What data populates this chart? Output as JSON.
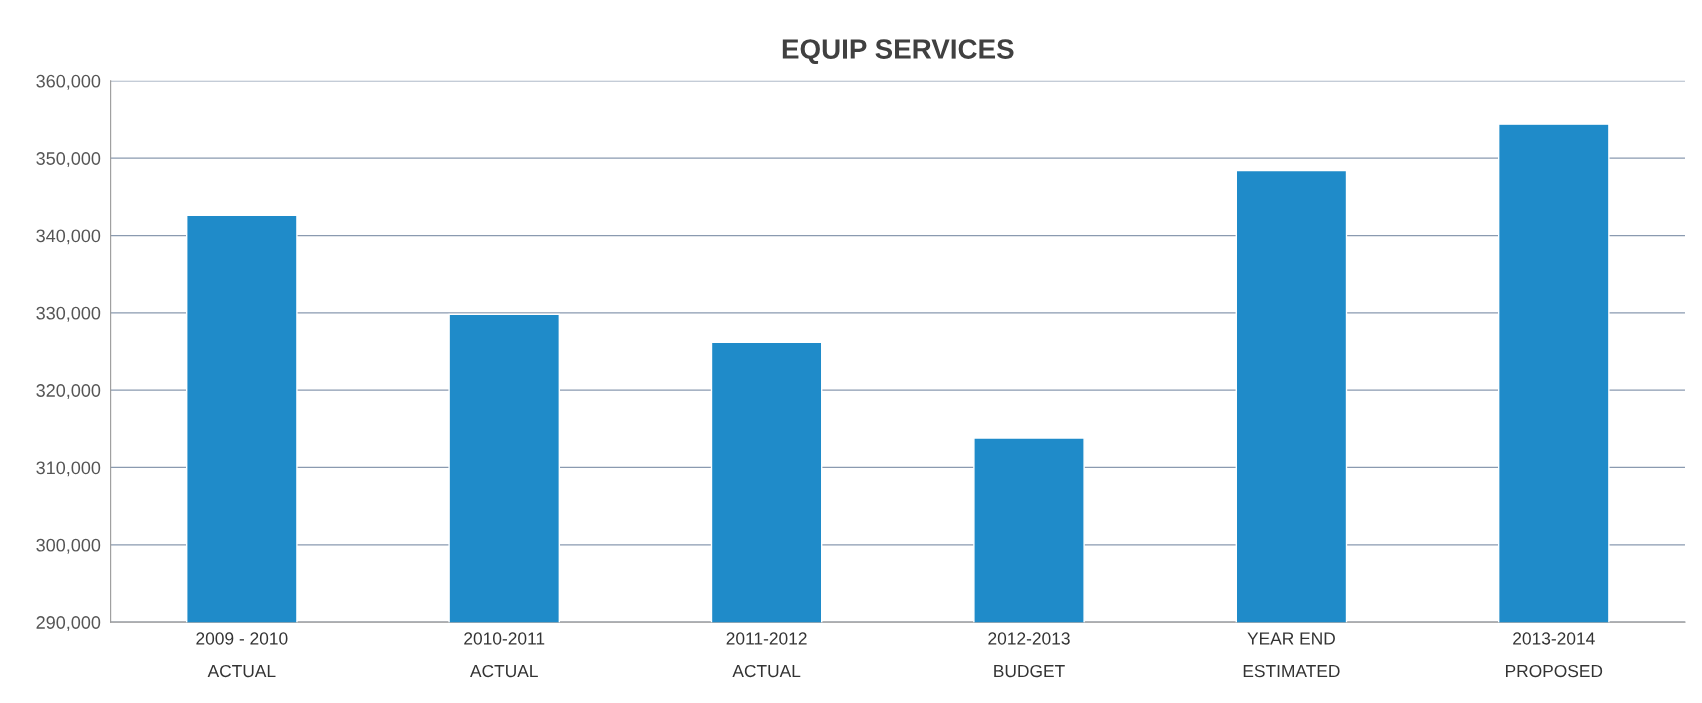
{
  "chart_data": {
    "type": "bar",
    "title": "EQUIP SERVICES",
    "categories": [
      "2009 - 2010\nACTUAL",
      "2010-2011\nACTUAL",
      "2011-2012\nACTUAL",
      "2012-2013\nBUDGET",
      "YEAR END\nESTIMATED",
      "2013-2014\nPROPOSED"
    ],
    "values": [
      342600,
      329800,
      326200,
      313800,
      348400,
      354400
    ],
    "color": "#1f8bc9",
    "ylim": [
      290000,
      360000
    ],
    "yticks": [
      {
        "value": 290000,
        "label": "290,000"
      },
      {
        "value": 300000,
        "label": "300,000"
      },
      {
        "value": 310000,
        "label": "310,000"
      },
      {
        "value": 320000,
        "label": "320,000"
      },
      {
        "value": 330000,
        "label": "330,000"
      },
      {
        "value": 340000,
        "label": "340,000"
      },
      {
        "value": 350000,
        "label": "350,000"
      },
      {
        "value": 360000,
        "label": "360,000"
      }
    ],
    "grid": "y"
  }
}
